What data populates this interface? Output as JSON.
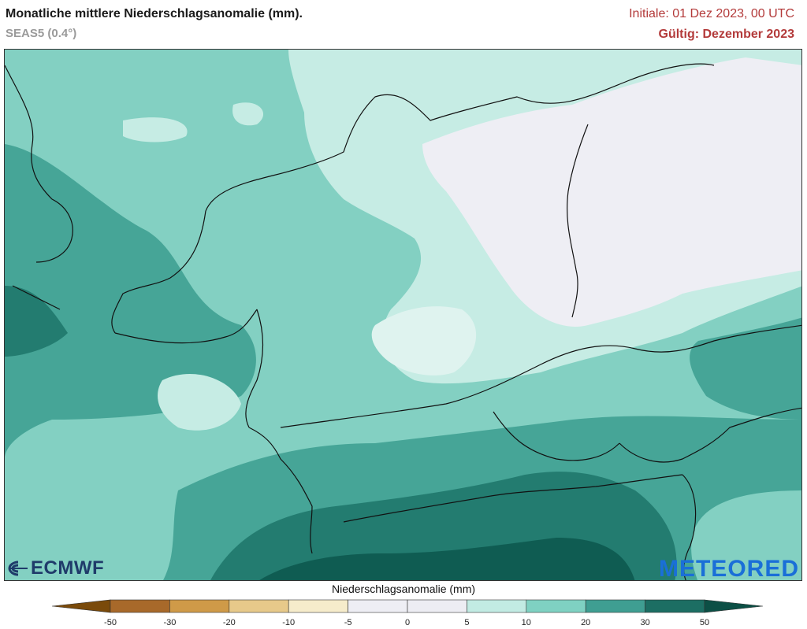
{
  "header": {
    "title": "Monatliche mittlere Niederschlagsanomalie (mm).",
    "model": "SEAS5 (0.4°)",
    "initial": "Initiale: 01 Dez 2023, 00 UTC",
    "valid": "Gültig: Dezember 2023"
  },
  "logos": {
    "left": "ECMWF",
    "right": "METEORED"
  },
  "legend": {
    "title": "Niederschlagsanomalie (mm)",
    "ticks": [
      "-50",
      "-30",
      "-20",
      "-10",
      "-5",
      "0",
      "5",
      "10",
      "20",
      "30",
      "50"
    ],
    "colors": [
      "#7a4a0a",
      "#a8692a",
      "#cf9a48",
      "#e7c98a",
      "#f6eccb",
      "#eeeef4",
      "#ededf3",
      "#c2ebe3",
      "#7fd1c2",
      "#3f9e92",
      "#1c6e63",
      "#0c4f45"
    ]
  },
  "map": {
    "colors": {
      "near_zero": "#eeeef4",
      "c5_10": "#c6ece4",
      "c10_20": "#83d0c2",
      "c20_30": "#46a597",
      "c30_50": "#237c70",
      "c50": "#0f5c52",
      "border": "#111111"
    }
  }
}
